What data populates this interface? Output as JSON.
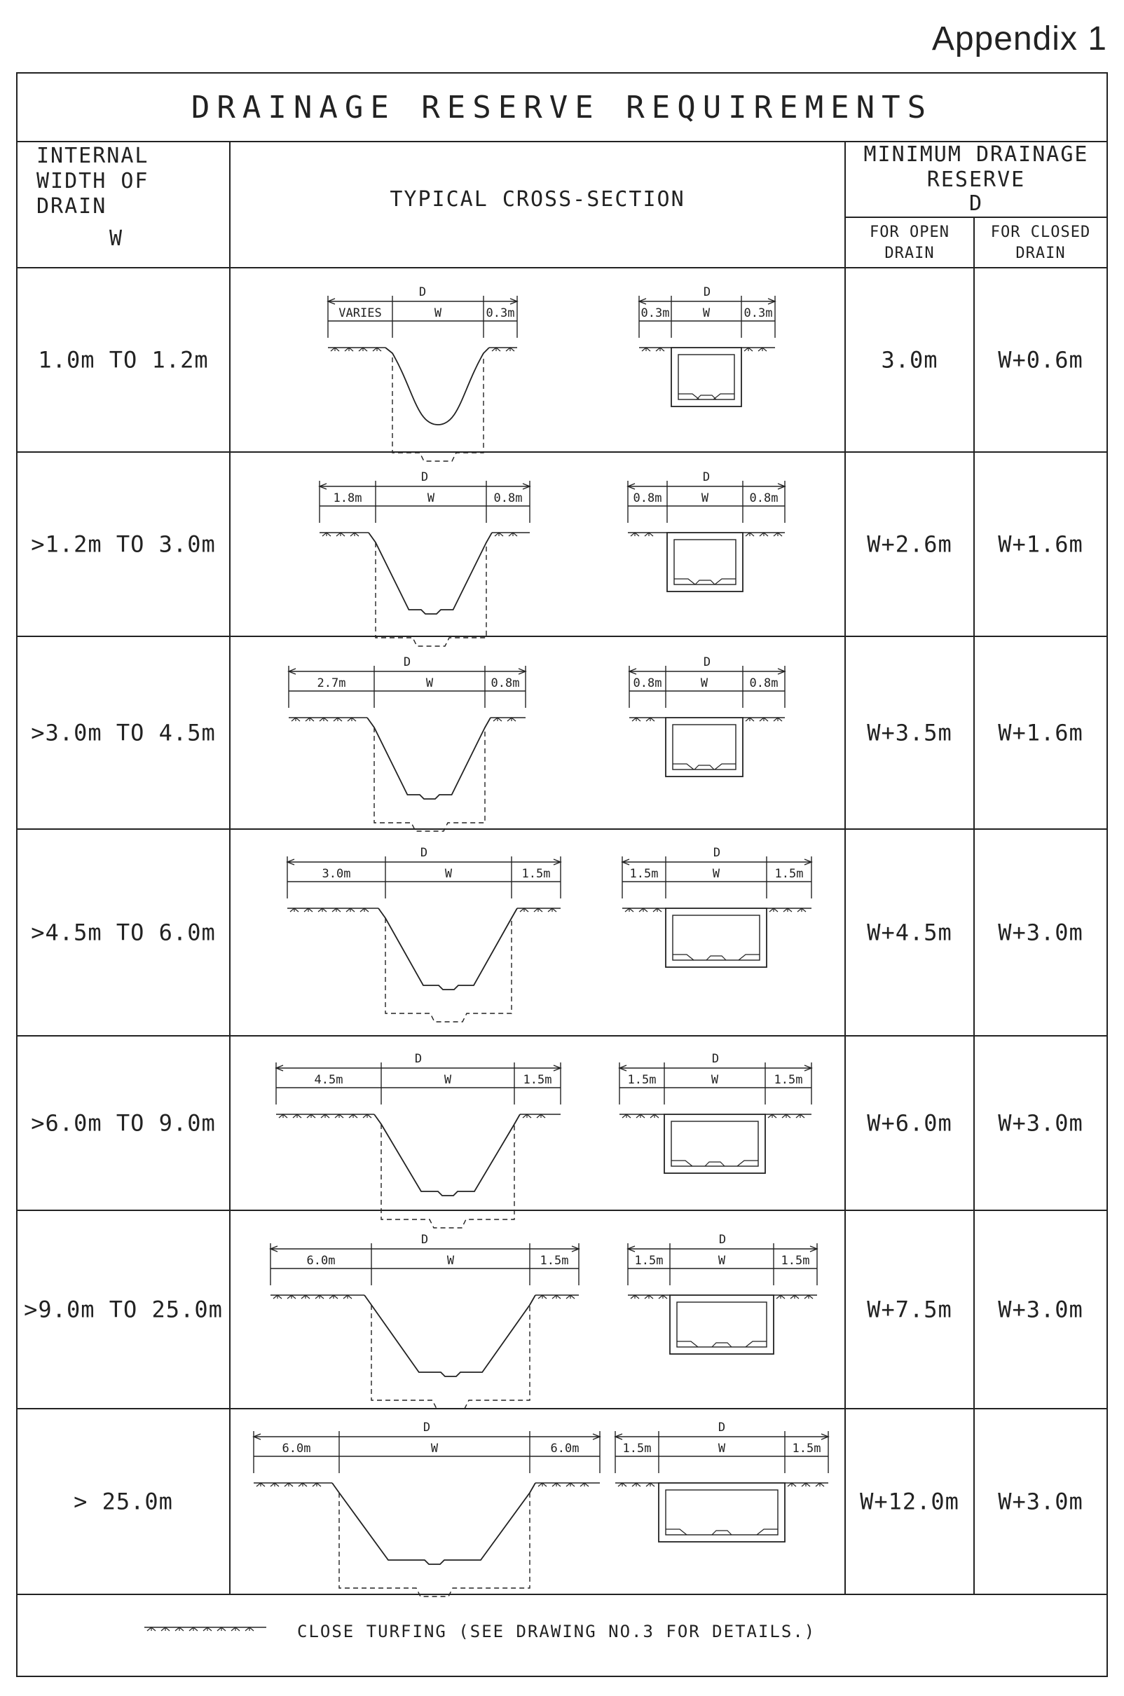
{
  "appendix_label": "Appendix 1",
  "title": "DRAINAGE   RESERVE   REQUIREMENTS",
  "headers": {
    "internal_width": [
      "INTERNAL",
      "WIDTH OF",
      "DRAIN",
      "W"
    ],
    "typical_cross_section": "TYPICAL CROSS-SECTION",
    "minimum_reserve": [
      "MINIMUM DRAINAGE",
      "RESERVE",
      "D"
    ],
    "open_drain": [
      "FOR OPEN",
      "DRAIN"
    ],
    "closed_drain": [
      "FOR CLOSED",
      "DRAIN"
    ]
  },
  "rows": [
    {
      "width": "1.0m  TO  1.2m",
      "open": "3.0m",
      "closed": "W+0.6m",
      "open_dims": {
        "total": "D",
        "left": "VARIES",
        "mid": "W",
        "right": "0.3m"
      },
      "closed_dims": {
        "total": "D",
        "left": "0.3m",
        "mid": "W",
        "right": "0.3m"
      }
    },
    {
      "width": ">1.2m  TO  3.0m",
      "open": "W+2.6m",
      "closed": "W+1.6m",
      "open_dims": {
        "total": "D",
        "left": "1.8m",
        "mid": "W",
        "right": "0.8m"
      },
      "closed_dims": {
        "total": "D",
        "left": "0.8m",
        "mid": "W",
        "right": "0.8m"
      }
    },
    {
      "width": ">3.0m  TO  4.5m",
      "open": "W+3.5m",
      "closed": "W+1.6m",
      "open_dims": {
        "total": "D",
        "left": "2.7m",
        "mid": "W",
        "right": "0.8m"
      },
      "closed_dims": {
        "total": "D",
        "left": "0.8m",
        "mid": "W",
        "right": "0.8m"
      }
    },
    {
      "width": ">4.5m  TO  6.0m",
      "open": "W+4.5m",
      "closed": "W+3.0m",
      "open_dims": {
        "total": "D",
        "left": "3.0m",
        "mid": "W",
        "right": "1.5m"
      },
      "closed_dims": {
        "total": "D",
        "left": "1.5m",
        "mid": "W",
        "right": "1.5m"
      }
    },
    {
      "width": ">6.0m  TO  9.0m",
      "open": "W+6.0m",
      "closed": "W+3.0m",
      "open_dims": {
        "total": "D",
        "left": "4.5m",
        "mid": "W",
        "right": "1.5m"
      },
      "closed_dims": {
        "total": "D",
        "left": "1.5m",
        "mid": "W",
        "right": "1.5m"
      }
    },
    {
      "width": ">9.0m  TO  25.0m",
      "open": "W+7.5m",
      "closed": "W+3.0m",
      "open_dims": {
        "total": "D",
        "left": "6.0m",
        "mid": "W",
        "right": "1.5m"
      },
      "closed_dims": {
        "total": "D",
        "left": "1.5m",
        "mid": "W",
        "right": "1.5m"
      }
    },
    {
      "width": "> 25.0m",
      "open": "W+12.0m",
      "closed": "W+3.0m",
      "open_dims": {
        "total": "D",
        "left": "6.0m",
        "mid": "W",
        "right": "6.0m"
      },
      "closed_dims": {
        "total": "D",
        "left": "1.5m",
        "mid": "W",
        "right": "1.5m"
      }
    }
  ],
  "legend": {
    "text": "CLOSE TURFING   (SEE DRAWING NO.3 FOR DETAILS.)",
    "icon": "close-turfing-symbol"
  }
}
